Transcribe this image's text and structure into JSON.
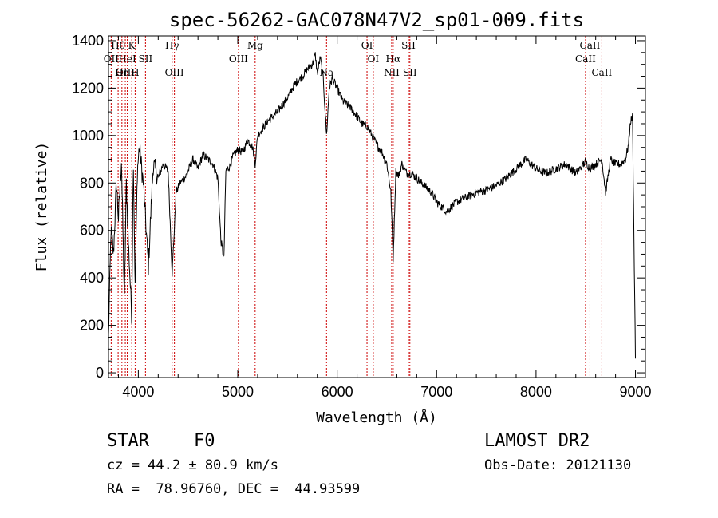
{
  "chart_data": {
    "type": "line",
    "title": "spec-56262-GAC078N47V2_sp01-009.fits",
    "xlabel": "Wavelength (Å)",
    "ylabel": "Flux (relative)",
    "xlim": [
      3700,
      9100
    ],
    "ylim": [
      -20,
      1420
    ],
    "xticks": [
      4000,
      5000,
      6000,
      7000,
      8000,
      9000
    ],
    "yticks": [
      0,
      200,
      400,
      600,
      800,
      1000,
      1200,
      1400
    ],
    "grid": false,
    "line_color": "#000000",
    "marker_color": "#cc0000",
    "series": [
      {
        "x": [
          3700,
          3725,
          3750,
          3780,
          3800,
          3830,
          3860,
          3880,
          3900,
          3933,
          3950,
          3968,
          3990,
          4010,
          4050,
          4101,
          4150,
          4200,
          4250,
          4300,
          4340,
          4380,
          4420,
          4480,
          4550,
          4600,
          4650,
          4700,
          4750,
          4800,
          4830,
          4861,
          4880,
          4920,
          4950,
          5000,
          5050,
          5100,
          5150,
          5175,
          5200,
          5250,
          5300,
          5350,
          5400,
          5450,
          5500,
          5550,
          5600,
          5650,
          5700,
          5750,
          5780,
          5800,
          5830,
          5860,
          5893,
          5920,
          5950,
          6000,
          6050,
          6100,
          6150,
          6200,
          6250,
          6300,
          6350,
          6400,
          6450,
          6500,
          6540,
          6563,
          6590,
          6620,
          6650,
          6700,
          6750,
          6800,
          6850,
          6900,
          6950,
          7000,
          7050,
          7100,
          7150,
          7200,
          7300,
          7400,
          7500,
          7600,
          7700,
          7800,
          7900,
          8000,
          8100,
          8200,
          8300,
          8400,
          8498,
          8542,
          8600,
          8662,
          8700,
          8750,
          8800,
          8850,
          8900,
          8930,
          8950,
          8970,
          9000
        ],
        "y": [
          150,
          600,
          500,
          800,
          650,
          900,
          300,
          800,
          550,
          250,
          900,
          350,
          850,
          950,
          800,
          450,
          880,
          820,
          880,
          850,
          420,
          760,
          800,
          830,
          900,
          860,
          920,
          900,
          880,
          820,
          560,
          480,
          850,
          870,
          910,
          940,
          930,
          980,
          950,
          880,
          1000,
          1030,
          1060,
          1080,
          1100,
          1130,
          1160,
          1200,
          1230,
          1250,
          1280,
          1300,
          1340,
          1260,
          1330,
          1240,
          1000,
          1200,
          1240,
          1200,
          1150,
          1130,
          1110,
          1080,
          1050,
          1040,
          1000,
          960,
          930,
          880,
          760,
          480,
          850,
          830,
          880,
          840,
          840,
          820,
          800,
          780,
          760,
          720,
          700,
          680,
          700,
          720,
          740,
          760,
          770,
          790,
          820,
          860,
          900,
          860,
          840,
          860,
          880,
          840,
          890,
          860,
          880,
          900,
          760,
          900,
          880,
          880,
          900,
          960,
          1060,
          1080,
          60
        ]
      }
    ],
    "line_markers": [
      {
        "label": "Hθ",
        "x": 3797,
        "row": 0
      },
      {
        "label": "K",
        "x": 3934,
        "row": 0
      },
      {
        "label": "Hγ",
        "x": 4340,
        "row": 0
      },
      {
        "label": "Mg",
        "x": 5175,
        "row": 0
      },
      {
        "label": "OI",
        "x": 6300,
        "row": 0
      },
      {
        "label": "SII",
        "x": 6717,
        "row": 0
      },
      {
        "label": "CaII",
        "x": 8542,
        "row": 0
      },
      {
        "label": "OII",
        "x": 3727,
        "row": 1
      },
      {
        "label": "HeI",
        "x": 3889,
        "row": 1
      },
      {
        "label": "SII",
        "x": 4072,
        "row": 1
      },
      {
        "label": "OIII",
        "x": 5007,
        "row": 1
      },
      {
        "label": "OI",
        "x": 6363,
        "row": 1
      },
      {
        "label": "Hα",
        "x": 6563,
        "row": 1
      },
      {
        "label": "CaII",
        "x": 8498,
        "row": 1
      },
      {
        "label": "OIII",
        "x": 3869,
        "row": 2
      },
      {
        "label": "Hη",
        "x": 3835,
        "row": 2
      },
      {
        "label": "H",
        "x": 3968,
        "row": 2
      },
      {
        "label": "OIII",
        "x": 4363,
        "row": 2
      },
      {
        "label": "Na",
        "x": 5893,
        "row": 2
      },
      {
        "label": "NII",
        "x": 6548,
        "row": 2
      },
      {
        "label": "SII",
        "x": 6731,
        "row": 2
      },
      {
        "label": "CaII",
        "x": 8662,
        "row": 2
      }
    ]
  },
  "footer": {
    "class_label": "STAR",
    "subclass": "F0",
    "survey": "LAMOST DR2",
    "cz": "cz = 44.2 ± 80.9 km/s",
    "obs_date": "Obs-Date: 20121130",
    "coords": "RA =  78.96760, DEC =  44.93599"
  }
}
